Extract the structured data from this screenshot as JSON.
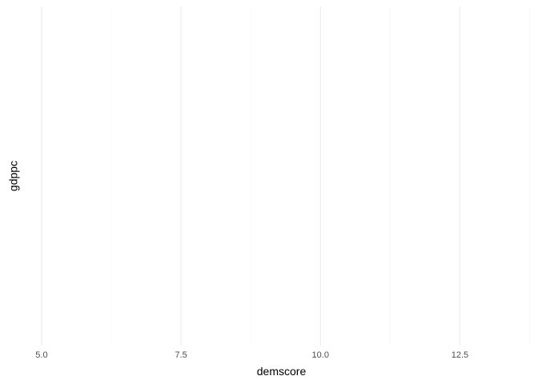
{
  "chart_data": {
    "type": "scatter",
    "xlabel": "demscore",
    "ylabel": "gdppc",
    "xlim": [
      4.8,
      13.8
    ],
    "x_ticks": [
      5.0,
      7.5,
      10.0,
      12.5
    ],
    "x_tick_labels": [
      "5.0",
      "7.5",
      "10.0",
      "12.5"
    ],
    "x_minor_ticks": [
      6.25,
      8.75,
      11.25,
      13.75
    ],
    "y_ticks": [],
    "series": [
      {
        "x": [],
        "y": []
      }
    ],
    "grid": true,
    "legend": "none",
    "colors": {
      "grid_major": "#ebebeb",
      "grid_minor": "#f4f4f4",
      "tick_text": "#4d4d4d",
      "axis_title": "#000000",
      "background": "#ffffff"
    }
  }
}
